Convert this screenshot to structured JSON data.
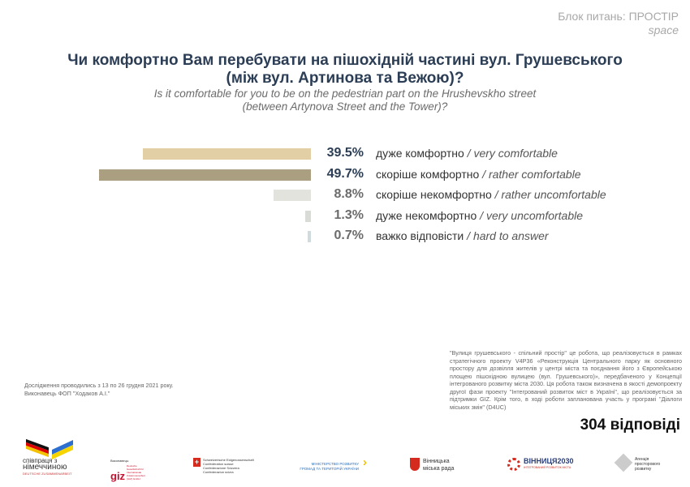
{
  "header": {
    "block_uk": "Блок питань: ПРОСТІР",
    "block_en": "space"
  },
  "question": {
    "title_line1": "Чи комфортно Вам перебувати на пішохідній частині вул. Грушевського",
    "title_line2": "(між вул. Артинова та Вежою)?",
    "subtitle_line1": "Is it comfortable for you to be on the pedestrian part on the Hrushevskho street",
    "subtitle_line2": "(between Artynova Street and the Tower)?"
  },
  "chart_data": {
    "type": "bar",
    "orientation": "horizontal",
    "unit": "%",
    "categories": [
      {
        "uk": "дуже комфортно",
        "en": "very comfortable"
      },
      {
        "uk": "скоріше комфортно",
        "en": "rather comfortable"
      },
      {
        "uk": "скоріше некомфортно",
        "en": "rather uncomfortable"
      },
      {
        "uk": "дуже некомфортно",
        "en": "very uncomfortable"
      },
      {
        "uk": "важко відповісти",
        "en": "hard to answer"
      }
    ],
    "values": [
      39.5,
      49.7,
      8.8,
      1.3,
      0.7
    ],
    "labels": [
      "39.5%",
      "49.7%",
      "8.8%",
      "1.3%",
      "0.7%"
    ],
    "bar_colors": [
      "#e3cfa5",
      "#ab9f82",
      "#e2e3dd",
      "#d8dbd6",
      "#cfdbdc"
    ],
    "label_colors": [
      "#2c3e55",
      "#2c3e55",
      "#6b6b6b",
      "#6b6b6b",
      "#6b6b6b"
    ],
    "grid": false
  },
  "footer": {
    "note": "\"Вулиця грушевського - спільний простір\" це робота, що реалізовується в рамках стратегічного проекту V4P36 «Реконструкція Центрального парку як основного простору для дозвілля жителів у центрі міста та поєднання його з Європейською площею пішохідною вулицею (вул. Грушевського)», передбаченого у Концепції інтегрованого розвитку міста 2030. Ця робота також визначена в якості демопроекту другої фази проекту \"Інтегрований розвиток міст в Україні\", що реалізовується за підтримки GIZ. Крім того, в ході роботи запланована участь у програмі \"Діалоги міських змін\" (D4UC)",
    "study_line1": "Дослідження проводились з 13 по 26 грудня 2021 року.",
    "study_line2": "Виконавець ФОП \"Ходаков А.І.\"",
    "responses": "304 відповіді"
  },
  "logos": {
    "germany": [
      "співпраця з",
      "німеччиною",
      "DEUTSCHE ZUSAMMENARBEIT"
    ],
    "giz": [
      "Виконавець:",
      "giz",
      "Deutsche Gesellschaft für Internationale Zusammenarbeit (GIZ) GmbH"
    ],
    "swiss": [
      "Schweizerische Eidgenossenschaft",
      "Confédération suisse",
      "Confederazione Svizzera",
      "Confederaziun svizra"
    ],
    "ministry": [
      "МІНІСТЕРСТВО РОЗВИТКУ",
      "ГРОМАД ТА ТЕРИТОРІЙ УКРАЇНИ"
    ],
    "vinnytsia_council": [
      "Вінницька",
      "міська рада"
    ],
    "vinnytsia2030": [
      "ВІННИЦЯ2030",
      "ІНТЕГРОВАНИЙ РОЗВИТОК МІСТА"
    ],
    "agency": [
      "Агенція",
      "просторового",
      "розвитку"
    ]
  }
}
